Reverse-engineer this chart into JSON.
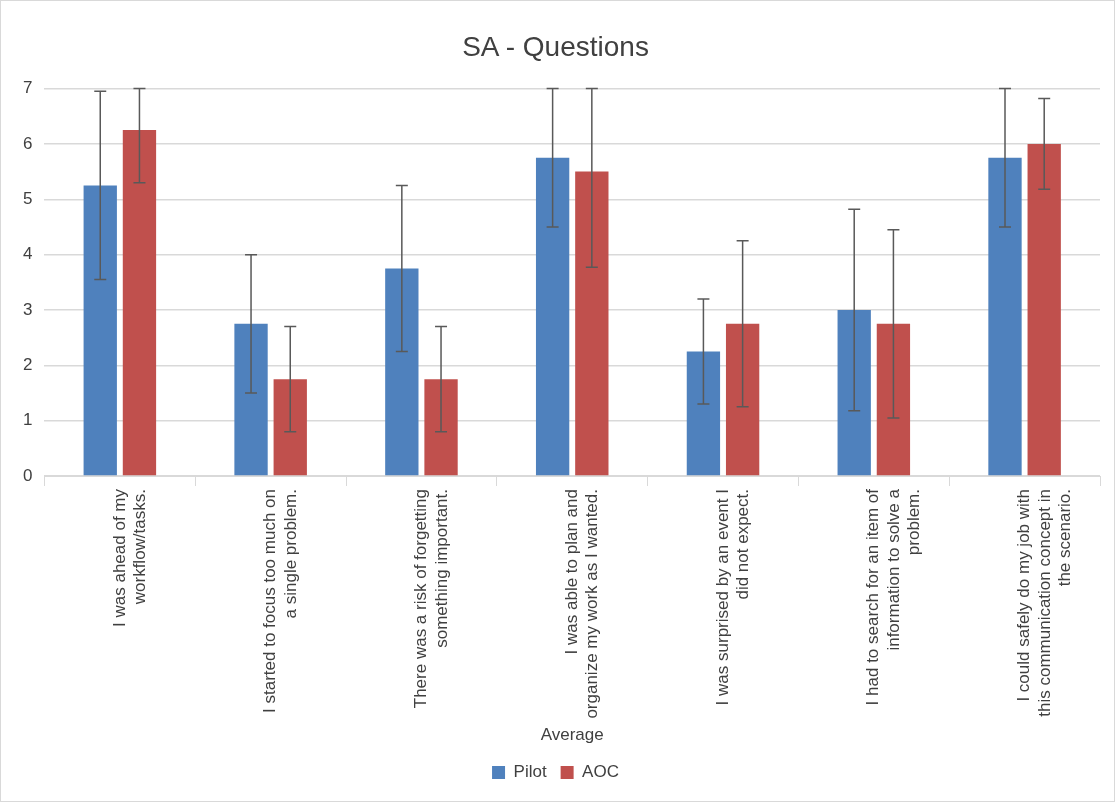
{
  "chart_data": {
    "type": "bar",
    "title": "SA - Questions",
    "xlabel": "Average",
    "categories": [
      "I was ahead of my workflow/tasks.",
      "I started to focus too much on a single problem.",
      "There was a risk of forgetting something important.",
      "I was able to plan and organize my work as I wanted.",
      "I was surprised by an event I did not expect.",
      "I had to search for an item of information to solve a problem.",
      "I could safely do my job with this communication concept in the scenario."
    ],
    "series": [
      {
        "name": "Pilot",
        "color": "#4f81bd",
        "values": [
          5.25,
          2.75,
          3.75,
          5.75,
          2.25,
          3,
          5.75
        ],
        "errors": [
          [
            3.55,
            6.95
          ],
          [
            1.5,
            4
          ],
          [
            2.25,
            5.25
          ],
          [
            4.5,
            7
          ],
          [
            1.3,
            3.2
          ],
          [
            1.18,
            4.82
          ],
          [
            4.5,
            7
          ]
        ]
      },
      {
        "name": "AOC",
        "color": "#c0504d",
        "values": [
          6.25,
          1.75,
          1.75,
          5.5,
          2.75,
          2.75,
          6
        ],
        "errors": [
          [
            5.3,
            7
          ],
          [
            0.8,
            2.7
          ],
          [
            0.8,
            2.7
          ],
          [
            3.77,
            7
          ],
          [
            1.25,
            4.25
          ],
          [
            1.05,
            4.45
          ],
          [
            5.18,
            6.82
          ]
        ]
      }
    ],
    "ylim": [
      0,
      7
    ],
    "yticks": [
      0,
      1,
      2,
      3,
      4,
      5,
      6,
      7
    ],
    "grid": "y",
    "legend": "bottom"
  }
}
